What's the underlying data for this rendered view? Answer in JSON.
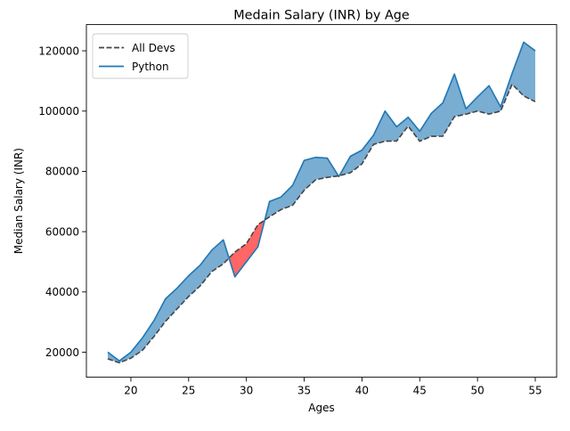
{
  "chart_data": {
    "type": "line",
    "title": "Medain Salary (INR) by Age",
    "xlabel": "Ages",
    "ylabel": "Median Salary (INR)",
    "xlim": [
      16.15,
      56.85
    ],
    "ylim": [
      11700,
      128700
    ],
    "xticks": [
      20,
      25,
      30,
      35,
      40,
      45,
      50,
      55
    ],
    "yticks": [
      20000,
      40000,
      60000,
      80000,
      100000,
      120000
    ],
    "grid": false,
    "legend_position": "upper left",
    "x": [
      18,
      19,
      20,
      21,
      22,
      23,
      24,
      25,
      26,
      27,
      28,
      29,
      30,
      31,
      32,
      33,
      34,
      35,
      36,
      37,
      38,
      39,
      40,
      41,
      42,
      43,
      44,
      45,
      46,
      47,
      48,
      49,
      50,
      51,
      52,
      53,
      54,
      55
    ],
    "series": [
      {
        "name": "All Devs",
        "style": "dashed",
        "color": "#444444",
        "values": [
          17784,
          16500,
          18012,
          20628,
          25206,
          30252,
          34368,
          38496,
          42000,
          46752,
          49320,
          53200,
          56000,
          62316,
          64928,
          67317,
          68748,
          73752,
          77232,
          78000,
          78508,
          79536,
          82488,
          88935,
          90000,
          90056,
          95000,
          90000,
          91633,
          91660,
          98150,
          98964,
          100000,
          98988,
          100000,
          108923,
          105000,
          103117
        ]
      },
      {
        "name": "Python",
        "style": "solid",
        "color": "#1f77b4",
        "values": [
          20046,
          17100,
          20000,
          24744,
          30500,
          37732,
          41247,
          45372,
          48876,
          53850,
          57287,
          45000,
          50000,
          55000,
          70000,
          71496,
          75370,
          83640,
          84666,
          84392,
          78254,
          85000,
          87038,
          91991,
          100000,
          94796,
          97962,
          93302,
          99240,
          102736,
          112285,
          100771,
          104708,
          108423,
          101407,
          112542,
          122870,
          120000
        ]
      }
    ],
    "fills": [
      {
        "where": "Python > All Devs",
        "color": "#1f77b4",
        "alpha": 0.6
      },
      {
        "where": "Python <= All Devs",
        "color": "#ff0000",
        "alpha": 0.6
      }
    ]
  }
}
